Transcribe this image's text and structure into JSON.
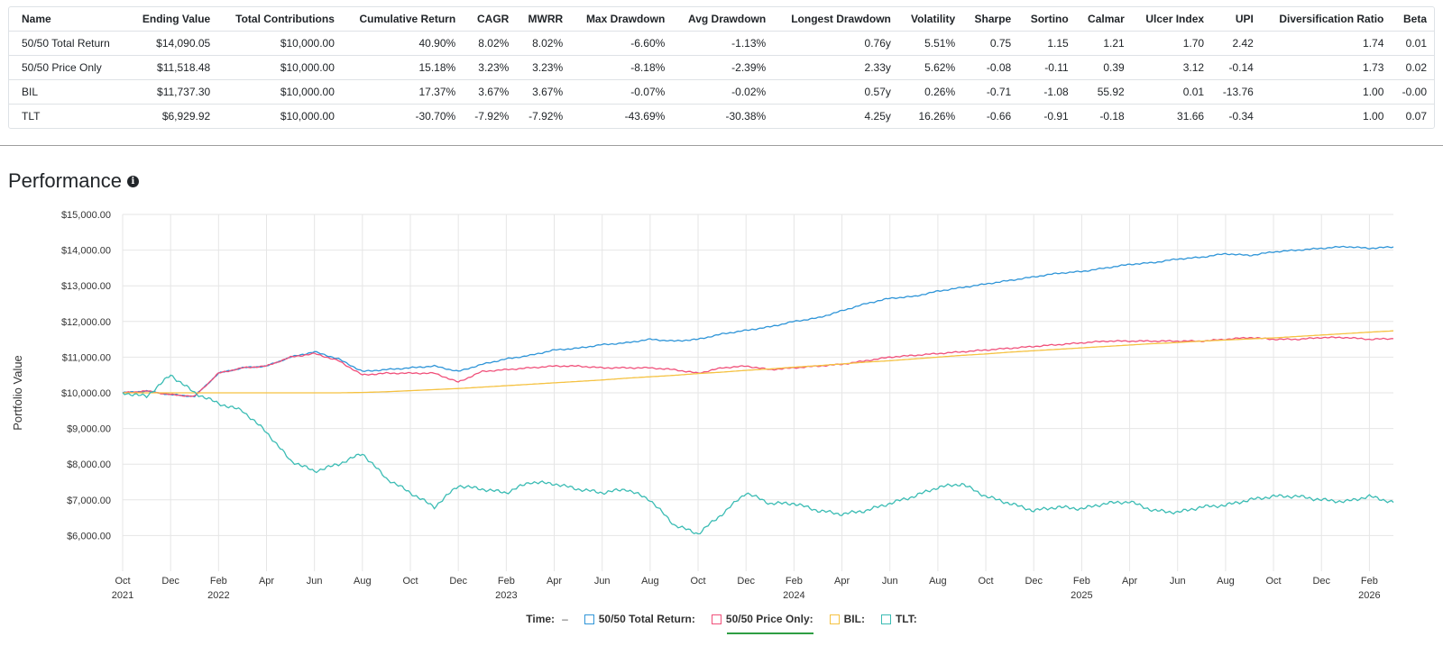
{
  "metrics_table": {
    "columns": [
      "Name",
      "Ending Value",
      "Total Contributions",
      "Cumulative Return",
      "CAGR",
      "MWRR",
      "Max Drawdown",
      "Avg Drawdown",
      "Longest Drawdown",
      "Volatility",
      "Sharpe",
      "Sortino",
      "Calmar",
      "Ulcer Index",
      "UPI",
      "Diversification Ratio",
      "Beta"
    ],
    "rows": [
      [
        "50/50 Total Return",
        "$14,090.05",
        "$10,000.00",
        "40.90%",
        "8.02%",
        "8.02%",
        "-6.60%",
        "-1.13%",
        "0.76y",
        "5.51%",
        "0.75",
        "1.15",
        "1.21",
        "1.70",
        "2.42",
        "1.74",
        "0.01"
      ],
      [
        "50/50 Price Only",
        "$11,518.48",
        "$10,000.00",
        "15.18%",
        "3.23%",
        "3.23%",
        "-8.18%",
        "-2.39%",
        "2.33y",
        "5.62%",
        "-0.08",
        "-0.11",
        "0.39",
        "3.12",
        "-0.14",
        "1.73",
        "0.02"
      ],
      [
        "BIL",
        "$11,737.30",
        "$10,000.00",
        "17.37%",
        "3.67%",
        "3.67%",
        "-0.07%",
        "-0.02%",
        "0.57y",
        "0.26%",
        "-0.71",
        "-1.08",
        "55.92",
        "0.01",
        "-13.76",
        "1.00",
        "-0.00"
      ],
      [
        "TLT",
        "$6,929.92",
        "$10,000.00",
        "-30.70%",
        "-7.92%",
        "-7.92%",
        "-43.69%",
        "-30.38%",
        "4.25y",
        "16.26%",
        "-0.66",
        "-0.91",
        "-0.18",
        "31.66",
        "-0.34",
        "1.00",
        "0.07"
      ]
    ]
  },
  "section": {
    "title": "Performance",
    "info_icon": "info-circle-icon"
  },
  "legend": {
    "time_label": "Time:",
    "time_value": "–",
    "items": [
      {
        "label": "50/50 Total Return:",
        "color": "#2f95d8"
      },
      {
        "label": "50/50 Price Only:",
        "color": "#f0507a"
      },
      {
        "label": "BIL:",
        "color": "#f5c242"
      },
      {
        "label": "TLT:",
        "color": "#3bbcb4"
      }
    ]
  },
  "chart_data": {
    "type": "line",
    "ylabel": "Portfolio Value",
    "y_ticks": [
      "$15,000.00",
      "$14,000.00",
      "$13,000.00",
      "$12,000.00",
      "$11,000.00",
      "$10,000.00",
      "$9,000.00",
      "$8,000.00",
      "$7,000.00",
      "$6,000.00"
    ],
    "ylim": [
      5000,
      15000
    ],
    "x_ticks": [
      {
        "month": "Oct",
        "year": "2021"
      },
      {
        "month": "Dec",
        "year": ""
      },
      {
        "month": "Feb",
        "year": "2022"
      },
      {
        "month": "Apr",
        "year": ""
      },
      {
        "month": "Jun",
        "year": ""
      },
      {
        "month": "Aug",
        "year": ""
      },
      {
        "month": "Oct",
        "year": ""
      },
      {
        "month": "Dec",
        "year": ""
      },
      {
        "month": "Feb",
        "year": "2023"
      },
      {
        "month": "Apr",
        "year": ""
      },
      {
        "month": "Jun",
        "year": ""
      },
      {
        "month": "Aug",
        "year": ""
      },
      {
        "month": "Oct",
        "year": ""
      },
      {
        "month": "Dec",
        "year": ""
      },
      {
        "month": "Feb",
        "year": "2024"
      },
      {
        "month": "Apr",
        "year": ""
      },
      {
        "month": "Jun",
        "year": ""
      },
      {
        "month": "Aug",
        "year": ""
      },
      {
        "month": "Oct",
        "year": ""
      },
      {
        "month": "Dec",
        "year": ""
      },
      {
        "month": "Feb",
        "year": "2025"
      },
      {
        "month": "Apr",
        "year": ""
      },
      {
        "month": "Jun",
        "year": ""
      },
      {
        "month": "Aug",
        "year": ""
      },
      {
        "month": "Oct",
        "year": ""
      },
      {
        "month": "Dec",
        "year": ""
      },
      {
        "month": "Feb",
        "year": "2026"
      }
    ],
    "x": [
      "2021-10",
      "2021-11",
      "2021-12",
      "2022-01",
      "2022-02",
      "2022-03",
      "2022-04",
      "2022-05",
      "2022-06",
      "2022-07",
      "2022-08",
      "2022-09",
      "2022-10",
      "2022-11",
      "2022-12",
      "2023-01",
      "2023-02",
      "2023-03",
      "2023-04",
      "2023-05",
      "2023-06",
      "2023-07",
      "2023-08",
      "2023-09",
      "2023-10",
      "2023-11",
      "2023-12",
      "2024-01",
      "2024-02",
      "2024-03",
      "2024-04",
      "2024-05",
      "2024-06",
      "2024-07",
      "2024-08",
      "2024-09",
      "2024-10",
      "2024-11",
      "2024-12",
      "2025-01",
      "2025-02",
      "2025-03",
      "2025-04",
      "2025-05",
      "2025-06",
      "2025-07",
      "2025-08",
      "2025-09",
      "2025-10",
      "2025-11",
      "2025-12",
      "2026-01",
      "2026-02",
      "2026-03"
    ],
    "series": [
      {
        "name": "50/50 Total Return",
        "color": "#2f95d8",
        "values": [
          10000,
          10050,
          9950,
          9900,
          10550,
          10700,
          10750,
          11000,
          11150,
          10950,
          10600,
          10650,
          10700,
          10750,
          10600,
          10800,
          10950,
          11050,
          11200,
          11250,
          11350,
          11400,
          11500,
          11450,
          11500,
          11650,
          11750,
          11850,
          12000,
          12100,
          12300,
          12500,
          12650,
          12700,
          12850,
          12950,
          13050,
          13150,
          13250,
          13350,
          13400,
          13500,
          13600,
          13650,
          13750,
          13800,
          13900,
          13850,
          13950,
          14000,
          14050,
          14100,
          14050,
          14090
        ]
      },
      {
        "name": "50/50 Price Only",
        "color": "#f0507a",
        "values": [
          10000,
          10050,
          9950,
          9900,
          10550,
          10700,
          10750,
          11000,
          11100,
          10900,
          10500,
          10550,
          10550,
          10550,
          10300,
          10600,
          10650,
          10700,
          10750,
          10750,
          10700,
          10700,
          10700,
          10650,
          10550,
          10700,
          10750,
          10650,
          10700,
          10750,
          10800,
          10900,
          11000,
          11050,
          11100,
          11150,
          11200,
          11250,
          11300,
          11350,
          11400,
          11450,
          11450,
          11450,
          11450,
          11450,
          11500,
          11550,
          11500,
          11500,
          11550,
          11550,
          11500,
          11518
        ]
      },
      {
        "name": "BIL",
        "color": "#f5c242",
        "values": [
          10000,
          10000,
          10000,
          10000,
          10000,
          10000,
          10000,
          10000,
          10000,
          10000,
          10010,
          10030,
          10060,
          10090,
          10120,
          10160,
          10200,
          10240,
          10280,
          10320,
          10360,
          10410,
          10450,
          10490,
          10540,
          10580,
          10630,
          10670,
          10720,
          10760,
          10810,
          10860,
          10900,
          10950,
          11000,
          11050,
          11090,
          11140,
          11180,
          11220,
          11260,
          11300,
          11340,
          11380,
          11410,
          11450,
          11480,
          11510,
          11540,
          11580,
          11620,
          11660,
          11700,
          11737
        ]
      },
      {
        "name": "TLT",
        "color": "#3bbcb4",
        "values": [
          10000,
          9900,
          10500,
          10000,
          9700,
          9500,
          8900,
          8100,
          7800,
          8000,
          8300,
          7600,
          7200,
          6800,
          7400,
          7300,
          7200,
          7500,
          7450,
          7300,
          7200,
          7300,
          7000,
          6300,
          6050,
          6600,
          7200,
          6900,
          6900,
          6700,
          6600,
          6700,
          6900,
          7100,
          7350,
          7450,
          7100,
          6900,
          6700,
          6800,
          6750,
          6900,
          6950,
          6700,
          6650,
          6800,
          6850,
          7000,
          7100,
          7100,
          7000,
          6950,
          7100,
          6930
        ]
      }
    ]
  }
}
